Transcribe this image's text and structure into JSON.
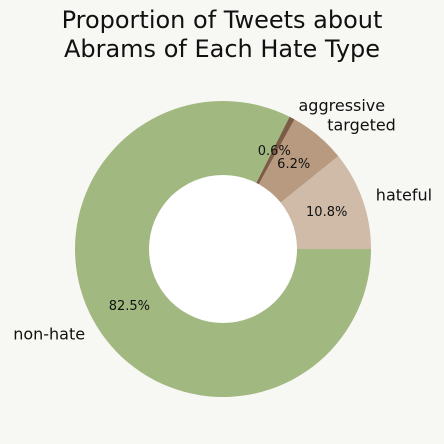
{
  "chart_data": {
    "type": "pie",
    "style": "donut",
    "title": [
      "Proportion of Tweets about",
      "Abrams of Each Hate Type"
    ],
    "slices": [
      {
        "label": "hateful",
        "value": 10.8,
        "pct_label": "10.8%",
        "color": "#cfbba7"
      },
      {
        "label": "targeted",
        "value": 6.2,
        "pct_label": "6.2%",
        "color": "#b89a80"
      },
      {
        "label": "aggressive",
        "value": 0.6,
        "pct_label": "0.6%",
        "color": "#7c5c44"
      },
      {
        "label": "non-hate",
        "value": 82.5,
        "pct_label": "82.5%",
        "color": "#a1b981"
      }
    ],
    "start_angle_deg": 0,
    "direction": "counterclockwise",
    "background_color": "#f7f7f3",
    "hole_color": "#ffffff"
  }
}
